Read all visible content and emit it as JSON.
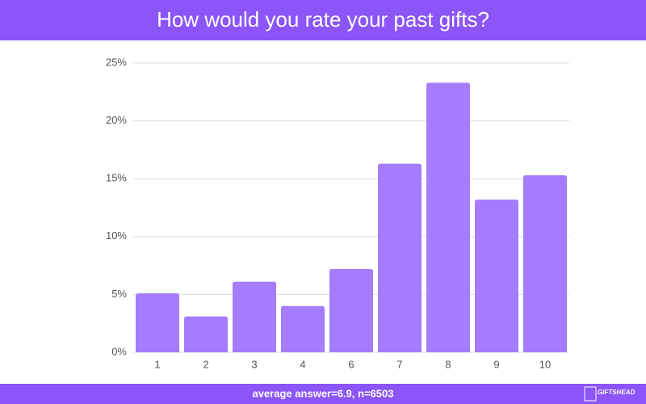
{
  "chart_data": {
    "type": "bar",
    "title": "How would you rate your past gifts?",
    "categories": [
      "1",
      "2",
      "3",
      "4",
      "6",
      "7",
      "8",
      "9",
      "10"
    ],
    "values": [
      5.1,
      3.1,
      6.1,
      4,
      7.2,
      16.3,
      23.3,
      13.2,
      15.3
    ],
    "color": "#a57cfc",
    "ylim": [
      0,
      25
    ],
    "yticks": [
      {
        "value": 0,
        "label": "0%"
      },
      {
        "value": 5,
        "label": "5%"
      },
      {
        "value": 10,
        "label": "10%"
      },
      {
        "value": 15,
        "label": "15%"
      },
      {
        "value": 20,
        "label": "20%"
      },
      {
        "value": 25,
        "label": "25%"
      }
    ],
    "grid": true,
    "footer": "average answer=6.9, n=6503",
    "logo": "GIFTSHEAD"
  }
}
